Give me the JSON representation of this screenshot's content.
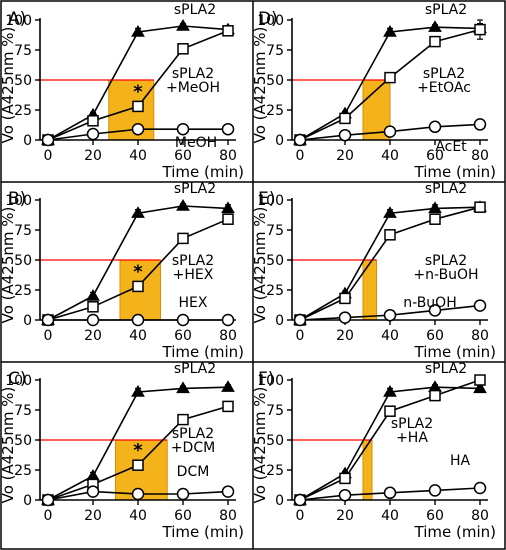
{
  "chart_data": [
    {
      "type": "line",
      "panel_label": "A)",
      "ylabel": "Vo (A425nm %)",
      "xlabel": "Time (min)",
      "x_ticks": [
        0,
        20,
        40,
        60,
        80
      ],
      "y_ticks": [
        0,
        25,
        50,
        75,
        100
      ],
      "xlim": [
        0,
        80
      ],
      "ylim": [
        0,
        100
      ],
      "threshold_y": 50,
      "highlight_x": [
        27,
        47
      ],
      "asterisk_x": 40,
      "series": [
        {
          "name": "sPLA2",
          "marker": "filled-triangle",
          "x": [
            0,
            20,
            40,
            60,
            80
          ],
          "y": [
            0,
            21,
            90,
            95,
            92
          ],
          "err": [
            1,
            2,
            3,
            2,
            3
          ]
        },
        {
          "name": "sPLA2\n+MeOH",
          "marker": "open-square",
          "x": [
            0,
            20,
            40,
            60,
            80
          ],
          "y": [
            0,
            16,
            28,
            76,
            91
          ],
          "err": [
            1,
            2,
            3,
            3,
            2
          ]
        },
        {
          "name": "MeOH",
          "marker": "open-circle",
          "x": [
            0,
            20,
            40,
            60,
            80
          ],
          "y": [
            0,
            5,
            9,
            9,
            9
          ],
          "err": [
            1,
            1,
            1,
            1,
            1
          ]
        }
      ]
    },
    {
      "type": "line",
      "panel_label": "B)",
      "ylabel": "Vo (A425nm %)",
      "xlabel": "Time (min)",
      "x_ticks": [
        0,
        20,
        40,
        60,
        80
      ],
      "y_ticks": [
        0,
        25,
        50,
        75,
        100
      ],
      "xlim": [
        0,
        80
      ],
      "ylim": [
        0,
        100
      ],
      "threshold_y": 50,
      "highlight_x": [
        32,
        50
      ],
      "asterisk_x": 40,
      "series": [
        {
          "name": "sPLA2",
          "marker": "filled-triangle",
          "x": [
            0,
            20,
            40,
            60,
            80
          ],
          "y": [
            0,
            20,
            89,
            95,
            93
          ],
          "err": [
            1,
            3,
            3,
            2,
            3
          ]
        },
        {
          "name": "sPLA2\n+HEX",
          "marker": "open-square",
          "x": [
            0,
            20,
            40,
            60,
            80
          ],
          "y": [
            0,
            11,
            28,
            68,
            84
          ],
          "err": [
            1,
            2,
            3,
            3,
            2
          ]
        },
        {
          "name": "HEX",
          "marker": "open-circle",
          "x": [
            0,
            20,
            40,
            60,
            80
          ],
          "y": [
            0,
            0,
            0,
            0,
            0
          ],
          "err": [
            0,
            0,
            0,
            0,
            0
          ]
        }
      ]
    },
    {
      "type": "line",
      "panel_label": "C)",
      "ylabel": "Vo (A425nm %)",
      "xlabel": "Time (min)",
      "x_ticks": [
        0,
        20,
        40,
        60,
        80
      ],
      "y_ticks": [
        0,
        25,
        50,
        75,
        100
      ],
      "xlim": [
        0,
        80
      ],
      "ylim": [
        0,
        100
      ],
      "threshold_y": 50,
      "highlight_x": [
        30,
        53
      ],
      "asterisk_x": 40,
      "series": [
        {
          "name": "sPLA2",
          "marker": "filled-triangle",
          "x": [
            0,
            20,
            40,
            60,
            80
          ],
          "y": [
            0,
            20,
            90,
            93,
            94
          ],
          "err": [
            1,
            3,
            3,
            2,
            2
          ]
        },
        {
          "name": "sPLA2\n+DCM",
          "marker": "open-square",
          "x": [
            0,
            20,
            40,
            60,
            80
          ],
          "y": [
            0,
            13,
            29,
            67,
            78
          ],
          "err": [
            1,
            2,
            3,
            3,
            2
          ]
        },
        {
          "name": "DCM",
          "marker": "open-circle",
          "x": [
            0,
            20,
            40,
            60,
            80
          ],
          "y": [
            0,
            7,
            5,
            5,
            7
          ],
          "err": [
            1,
            1,
            3,
            4,
            3
          ]
        }
      ]
    },
    {
      "type": "line",
      "panel_label": "D)",
      "ylabel": "Vo (A425nm %)",
      "xlabel": "Time (min)",
      "x_ticks": [
        0,
        20,
        40,
        60,
        80
      ],
      "y_ticks": [
        0,
        25,
        50,
        75,
        100
      ],
      "xlim": [
        0,
        80
      ],
      "ylim": [
        0,
        100
      ],
      "threshold_y": 50,
      "highlight_x": [
        28,
        40
      ],
      "series": [
        {
          "name": "sPLA2",
          "marker": "filled-triangle",
          "x": [
            0,
            20,
            40,
            60,
            80
          ],
          "y": [
            0,
            22,
            90,
            94,
            93
          ],
          "err": [
            1,
            2,
            3,
            2,
            4
          ]
        },
        {
          "name": "sPLA2\n+EtOAc",
          "marker": "open-square",
          "x": [
            0,
            20,
            40,
            60,
            80
          ],
          "y": [
            0,
            18,
            52,
            82,
            92
          ],
          "err": [
            1,
            2,
            3,
            3,
            8
          ]
        },
        {
          "name": "AcEt",
          "marker": "open-circle",
          "x": [
            0,
            20,
            40,
            60,
            80
          ],
          "y": [
            0,
            4,
            7,
            11,
            13
          ],
          "err": [
            1,
            1,
            1,
            2,
            2
          ]
        }
      ]
    },
    {
      "type": "line",
      "panel_label": "E)",
      "ylabel": "Vo (A425nm %)",
      "xlabel": "Time (min)",
      "x_ticks": [
        0,
        20,
        40,
        60,
        80
      ],
      "y_ticks": [
        0,
        25,
        50,
        75,
        100
      ],
      "xlim": [
        0,
        80
      ],
      "ylim": [
        0,
        100
      ],
      "threshold_y": 50,
      "highlight_x": [
        28,
        34
      ],
      "series": [
        {
          "name": "sPLA2",
          "marker": "filled-triangle",
          "x": [
            0,
            20,
            40,
            60,
            80
          ],
          "y": [
            0,
            22,
            89,
            93,
            94
          ],
          "err": [
            1,
            2,
            3,
            3,
            3
          ]
        },
        {
          "name": "sPLA2\n+n-BuOH",
          "marker": "open-square",
          "x": [
            0,
            20,
            40,
            60,
            80
          ],
          "y": [
            0,
            18,
            71,
            84,
            94
          ],
          "err": [
            1,
            3,
            3,
            3,
            3
          ]
        },
        {
          "name": "n-BuOH",
          "marker": "open-circle",
          "x": [
            0,
            20,
            40,
            60,
            80
          ],
          "y": [
            0,
            2,
            4,
            8,
            12
          ],
          "err": [
            1,
            1,
            1,
            1,
            1
          ]
        }
      ]
    },
    {
      "type": "line",
      "panel_label": "F)",
      "ylabel": "Vo (A425nm %)",
      "xlabel": "Time (min)",
      "x_ticks": [
        0,
        20,
        40,
        60,
        80
      ],
      "y_ticks": [
        0,
        25,
        50,
        75,
        100
      ],
      "xlim": [
        0,
        80
      ],
      "ylim": [
        0,
        100
      ],
      "threshold_y": 50,
      "highlight_x": [
        28,
        32
      ],
      "series": [
        {
          "name": "sPLA2",
          "marker": "filled-triangle",
          "x": [
            0,
            20,
            40,
            60,
            80
          ],
          "y": [
            0,
            22,
            90,
            94,
            93
          ],
          "err": [
            1,
            2,
            3,
            2,
            2
          ]
        },
        {
          "name": "sPLA2\n+HA",
          "marker": "open-square",
          "x": [
            0,
            20,
            40,
            60,
            80
          ],
          "y": [
            0,
            18,
            74,
            87,
            100
          ],
          "err": [
            1,
            2,
            3,
            3,
            3
          ]
        },
        {
          "name": "HA",
          "marker": "open-circle",
          "x": [
            0,
            20,
            40,
            60,
            80
          ],
          "y": [
            0,
            4,
            6,
            8,
            10
          ],
          "err": [
            1,
            1,
            1,
            1,
            1
          ]
        }
      ]
    }
  ],
  "colors": {
    "highlight_fill": "#f5b31b",
    "highlight_stroke": "#e08a00",
    "threshold_line": "#ff0000",
    "ink": "#000000",
    "background": "#ffffff"
  }
}
